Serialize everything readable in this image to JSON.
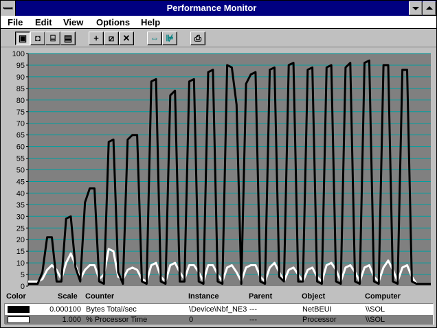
{
  "window": {
    "title": "Performance Monitor"
  },
  "menu": [
    "File",
    "Edit",
    "View",
    "Options",
    "Help"
  ],
  "toolbar": [
    {
      "icon": "chart-view-icon",
      "pressed": true
    },
    {
      "icon": "alert-view-icon",
      "pressed": false
    },
    {
      "icon": "log-view-icon",
      "pressed": false
    },
    {
      "icon": "report-view-icon",
      "pressed": false
    },
    {
      "icon": "add-counter-icon",
      "pressed": false
    },
    {
      "icon": "edit-counter-icon",
      "pressed": false
    },
    {
      "icon": "delete-counter-icon",
      "pressed": false
    },
    {
      "icon": "update-now-icon",
      "pressed": false
    },
    {
      "icon": "bookmark-icon",
      "pressed": false
    },
    {
      "icon": "options-icon",
      "pressed": false
    }
  ],
  "colors": {
    "background": "#808080",
    "gridline": "#00a0a0",
    "series_bytes": "#000000",
    "series_cpu": "#ffffff",
    "titlebar": "#000080"
  },
  "chart_data": {
    "type": "line",
    "ylim": [
      0,
      100
    ],
    "yticks": [
      100,
      95,
      90,
      85,
      80,
      75,
      70,
      65,
      60,
      55,
      50,
      45,
      40,
      35,
      30,
      25,
      20,
      15,
      10,
      5,
      0
    ],
    "grid": true,
    "series": [
      {
        "name": "Bytes Total/sec",
        "color": "#000000",
        "values": [
          1,
          1,
          1,
          6,
          21,
          21,
          2,
          2,
          29,
          30,
          8,
          2,
          36,
          42,
          42,
          2,
          1,
          62,
          63,
          6,
          1,
          63,
          65,
          65,
          2,
          1,
          88,
          89,
          2,
          1,
          82,
          84,
          2,
          2,
          88,
          89,
          2,
          1,
          92,
          93,
          2,
          1,
          95,
          94,
          78,
          1,
          87,
          91,
          92,
          2,
          1,
          93,
          94,
          4,
          2,
          95,
          96,
          2,
          2,
          93,
          94,
          2,
          1,
          94,
          95,
          2,
          1,
          94,
          96,
          2,
          1,
          96,
          97,
          2,
          1,
          95,
          95,
          2,
          1,
          93,
          93,
          2,
          1,
          1,
          1,
          1
        ]
      },
      {
        "name": "% Processor Time",
        "color": "#ffffff",
        "values": [
          2,
          2,
          2,
          3,
          7,
          9,
          7,
          3,
          10,
          14,
          9,
          3,
          7,
          9,
          9,
          3,
          5,
          16,
          15,
          4,
          3,
          7,
          8,
          7,
          3,
          2,
          9,
          10,
          4,
          2,
          9,
          10,
          6,
          3,
          9,
          9,
          6,
          2,
          9,
          9,
          5,
          2,
          8,
          9,
          6,
          2,
          8,
          9,
          9,
          4,
          2,
          8,
          10,
          6,
          2,
          7,
          8,
          5,
          2,
          7,
          8,
          4,
          2,
          9,
          10,
          7,
          2,
          8,
          9,
          6,
          2,
          8,
          9,
          4,
          2,
          8,
          11,
          7,
          2,
          8,
          9,
          4,
          1,
          1,
          1,
          1
        ]
      }
    ]
  },
  "legend": {
    "headers": {
      "color": "Color",
      "scale": "Scale",
      "counter": "Counter",
      "instance": "Instance",
      "parent": "Parent",
      "object": "Object",
      "computer": "Computer"
    },
    "rows": [
      {
        "color_hex": "#000000",
        "scale": "0.000100",
        "counter": "Bytes Total/sec",
        "instance": "\\Device\\Nbf_NE3",
        "parent": "---",
        "object": "NetBEUI",
        "computer": "\\\\SOL"
      },
      {
        "color_hex": "#ffffff",
        "scale": "1.000",
        "counter": "% Processor Time",
        "instance": "0",
        "parent": "---",
        "object": "Processor",
        "computer": "\\\\SOL"
      }
    ]
  }
}
